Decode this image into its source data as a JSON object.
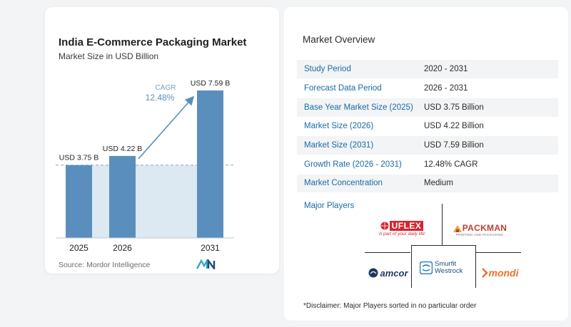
{
  "chart_data": {
    "type": "bar",
    "title": "India E-Commerce Packaging Market",
    "subtitle": "Market Size in USD Billion",
    "categories": [
      "2025",
      "2026",
      "2031"
    ],
    "values": [
      3.75,
      4.22,
      7.59
    ],
    "data_labels": [
      "USD 3.75 B",
      "USD 4.22 B",
      "USD 7.59 B"
    ],
    "cagr_label": "CAGR",
    "cagr_value": "12.48%",
    "bar_color": "#5a8fbd",
    "baseline_fill_color": "#dce8f2",
    "arrow_color": "#5a8fbd"
  },
  "source": "Source:  Mordor Intelligence",
  "overview": {
    "title": "Market Overview",
    "rows": [
      {
        "label": "Study Period",
        "value": "2020 - 2031"
      },
      {
        "label": "Forecast Data Period",
        "value": "2026 - 2031"
      },
      {
        "label": "Base Year Market Size (2025)",
        "value": "USD 3.75 Billion"
      },
      {
        "label": "Market Size (2026)",
        "value": "USD 4.22 Billion"
      },
      {
        "label": "Market Size (2031)",
        "value": "USD 7.59 Billion"
      },
      {
        "label": "Growth Rate (2026 - 2031)",
        "value": "12.48% CAGR"
      },
      {
        "label": "Market Concentration",
        "value": "Medium"
      }
    ]
  },
  "major_players": {
    "title": "Major Players",
    "logos": {
      "uflex": "UFLEX",
      "uflex_tagline": "'A part of your daily life'",
      "packman": "PACKMAN",
      "packman_sub": "PRINTING AND PACKAGING",
      "smurfit_1": "Smurfit",
      "smurfit_2": "Westrock",
      "amcor": "amcor",
      "mondi": "mondi"
    }
  },
  "disclaimer": "*Disclaimer: Major Players sorted in no particular order"
}
